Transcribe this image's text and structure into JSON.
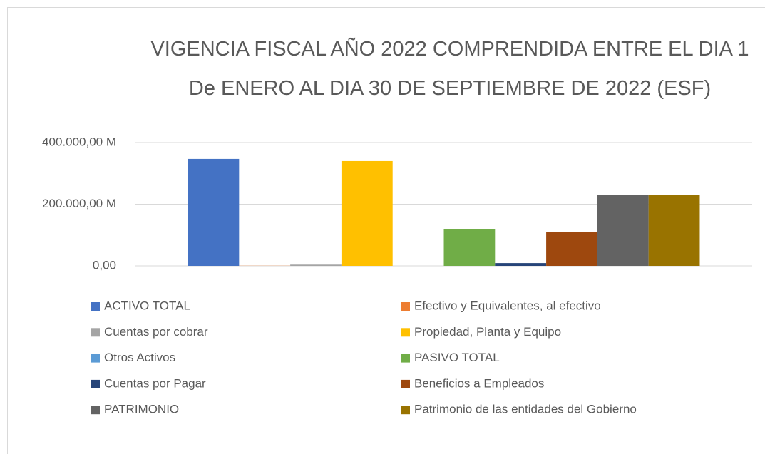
{
  "chart_data": {
    "type": "bar",
    "title": "VIGENCIA FISCAL AÑO 2022 COMPRENDIDA ENTRE EL DIA 1 De ENERO AL DIA 30 DE SEPTIEMBRE DE 2022 (ESF)",
    "categories": [
      null
    ],
    "series": [
      {
        "name": "ACTIVO TOTAL",
        "color": "#4472c4",
        "values": [
          347000
        ]
      },
      {
        "name": "Efectivo y Equivalentes, al efectivo",
        "color": "#ed7d31",
        "values": [
          500
        ]
      },
      {
        "name": "Cuentas por cobrar",
        "color": "#a5a5a5",
        "values": [
          4000
        ]
      },
      {
        "name": "Propiedad, Planta y Equipo",
        "color": "#ffc000",
        "values": [
          340000
        ]
      },
      {
        "name": "Otros Activos",
        "color": "#5b9bd5",
        "values": [
          0
        ]
      },
      {
        "name": "PASIVO TOTAL",
        "color": "#70ad47",
        "values": [
          118000
        ]
      },
      {
        "name": "Cuentas por Pagar",
        "color": "#264478",
        "values": [
          9000
        ]
      },
      {
        "name": "Beneficios a Empleados",
        "color": "#9e480e",
        "values": [
          109000
        ]
      },
      {
        "name": "PATRIMONIO",
        "color": "#636363",
        "values": [
          229000
        ]
      },
      {
        "name": "Patrimonio de las entidades del Gobierno",
        "color": "#997300",
        "values": [
          229000
        ]
      }
    ],
    "ylim": [
      0,
      400000
    ],
    "yticks": [
      {
        "value": 0,
        "label": "0,00"
      },
      {
        "value": 200000,
        "label": "200.000,00 M"
      },
      {
        "value": 400000,
        "label": "400.000,00 M"
      }
    ],
    "grid": true,
    "legend": "bottom"
  }
}
